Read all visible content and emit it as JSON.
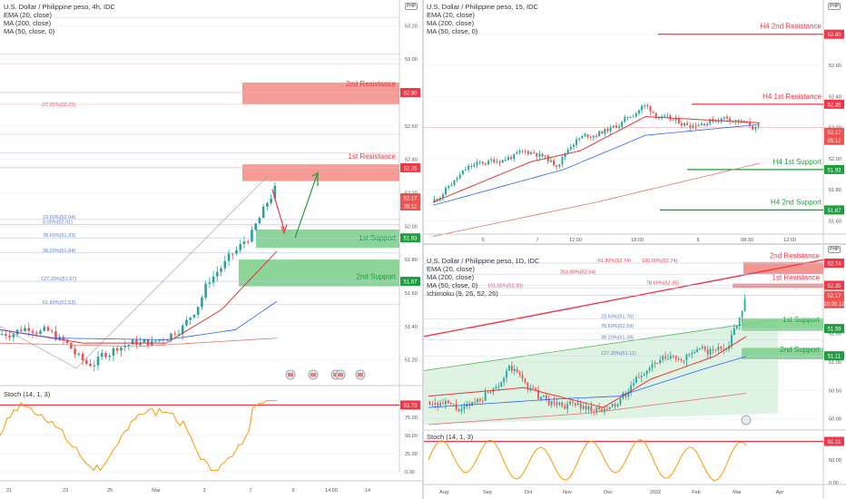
{
  "colors": {
    "up": "#26a69a",
    "down": "#ef5350",
    "res": "#f23645",
    "sup": "#1e9e3e",
    "ema": "#e53935",
    "ma200": "#e57373",
    "ma50": "#2962ff",
    "stoch": "#ff9800",
    "fib": "#5b7fc7",
    "grid": "#f0f3fa"
  },
  "left": {
    "title": "U.S. Dollar / Philippine peso, 4h, IDC",
    "indicators": [
      "EMA (20, close)",
      "MA (200, close)",
      "MA (50, close, 0)"
    ],
    "currency": "PHP",
    "y_ticks": [
      "53.20",
      "53.00",
      "52.80",
      "52.60",
      "52.40",
      "52.20",
      "52.00",
      "51.80",
      "51.60",
      "51.40",
      "51.20"
    ],
    "x_ticks": [
      "21",
      "23",
      "25",
      "Mar",
      "3",
      "7",
      "9",
      "14:00",
      "14"
    ],
    "fib_labels": [
      "-27.20%(52.73)",
      "127.20%(51.67)",
      "61.80%(51.53)",
      "23.60%(52.04)",
      "78.60%(51.93)",
      "38.20%(51.84)",
      "0.00%(52.01)"
    ],
    "zones": {
      "res2": "2nd Resistance",
      "res1": "1st Resistance",
      "sup1": "1st Support",
      "sup2": "2nd Support"
    },
    "badges": {
      "res2": "52.80",
      "res1": "52.35",
      "price": "52.17",
      "time": "35:12",
      "sup1": "51.93",
      "sup2": "51.67"
    },
    "stoch": {
      "title": "Stoch (14, 1, 3)",
      "ticks": [
        "75.00",
        "50.00",
        "25.00",
        "0.00"
      ],
      "badge": "93.73"
    }
  },
  "right_top": {
    "title": "U.S. Dollar / Philippine peso, 15, IDC",
    "indicators": [
      "EMA (20, close)",
      "MA (200, close)",
      "MA (50, close, 0)"
    ],
    "currency": "PHP",
    "y_ticks": [
      "52.80",
      "52.60",
      "52.40",
      "52.20",
      "52.00",
      "51.80",
      "51.60"
    ],
    "x_ticks": [
      "5",
      "7",
      "12:00",
      "18:00",
      "8",
      "08:30",
      "12:00"
    ],
    "levels": {
      "h4r2": "H4 2nd Resistance",
      "h4r1": "H4 1st Resistance",
      "h4s1": "H4 1st Support",
      "h4s2": "H4 2nd Support"
    },
    "badges": {
      "h4r2": "52.80",
      "h4r1": "52.35",
      "price": "52.17",
      "time": "05:12",
      "h4s1": "51.93",
      "h4s2": "51.67"
    }
  },
  "right_bottom": {
    "title": "U.S. Dollar / Philippine peso, 1D, IDC",
    "indicators": [
      "EMA (20, close)",
      "MA (200, close)",
      "MA (50, close, 0)",
      "Ichimoku (9, 26, 52, 26)"
    ],
    "currency": "PHP",
    "y_ticks": [
      "51.50",
      "51.00",
      "50.50",
      "50.00"
    ],
    "x_ticks": [
      "Aug",
      "Sep",
      "Oct",
      "Nov",
      "Dec",
      "2022",
      "Feb",
      "Mar",
      "Apr"
    ],
    "fib_labels": [
      "161.80%(52.30)",
      "-61.80%(52.74)",
      "100.00%(52.74)",
      "261.80%(52.54)",
      "78.60%(52.35)",
      "23.60%(51.76)",
      "78.60%(51.59)",
      "38.20%(51.39)",
      "127.20%(51.11)"
    ],
    "zones": {
      "res2": "2nd Resistance",
      "res1": "1st Resistance",
      "sup1": "1st Support",
      "sup2": "2nd Support"
    },
    "badges": {
      "res2": "52.74",
      "res1": "52.35",
      "price": "52.17",
      "time": "20:35:12",
      "sup1": "51.59",
      "sup2": "51.11"
    },
    "stoch": {
      "title": "Stoch (14, 1, 3)",
      "ticks": [
        "50.00",
        "0.00"
      ],
      "badge": "91.21"
    }
  },
  "chart_data": [
    {
      "type": "candlestick",
      "title": "U.S. Dollar / Philippine peso, 4h, IDC",
      "ylim": [
        51.1,
        53.3
      ],
      "levels": {
        "2nd Resistance": 52.8,
        "1st Resistance": 52.35,
        "1st Support": 51.93,
        "2nd Support": 51.67
      },
      "last_price": 52.17,
      "stoch_last": 93.73
    },
    {
      "type": "candlestick",
      "title": "U.S. Dollar / Philippine peso, 15, IDC",
      "ylim": [
        51.55,
        52.95
      ],
      "levels": {
        "H4 2nd Resistance": 52.8,
        "H4 1st Resistance": 52.35,
        "H4 1st Support": 51.93,
        "H4 2nd Support": 51.67
      },
      "last_price": 52.17
    },
    {
      "type": "candlestick",
      "title": "U.S. Dollar / Philippine peso, 1D, IDC",
      "ylim": [
        49.9,
        52.9
      ],
      "levels": {
        "2nd Resistance": 52.74,
        "1st Resistance": 52.35,
        "1st Support": 51.59,
        "2nd Support": 51.11
      },
      "last_price": 52.17,
      "stoch_last": 91.21
    }
  ]
}
